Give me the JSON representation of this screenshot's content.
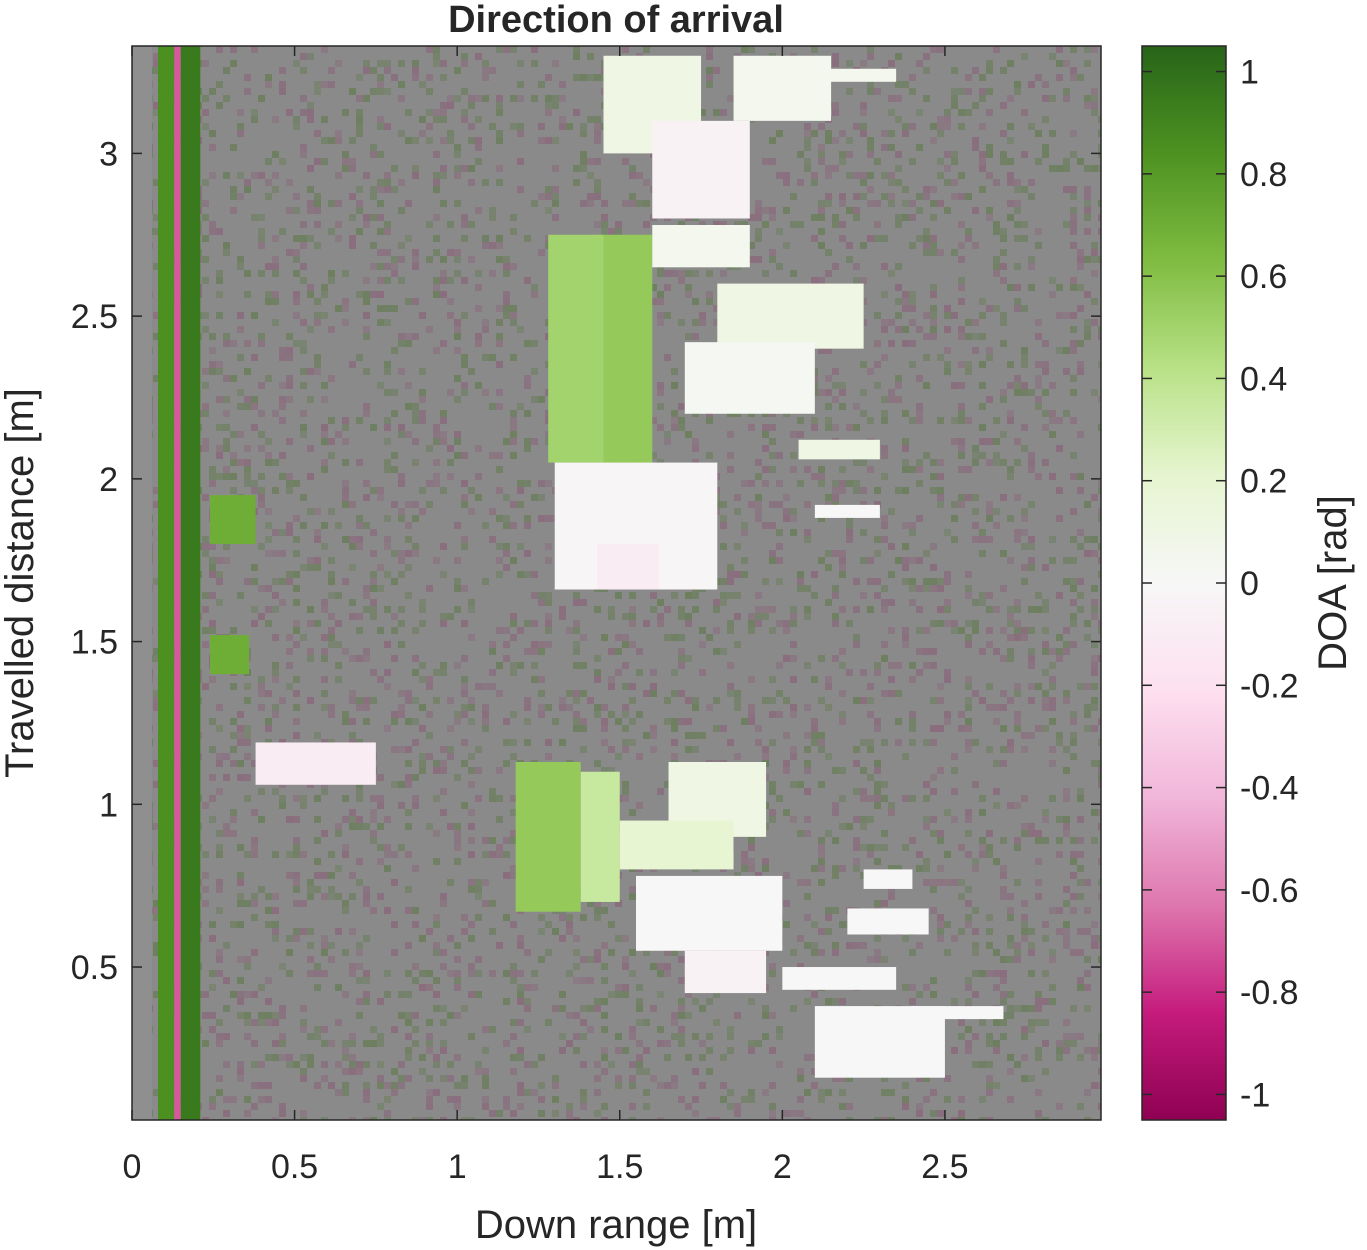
{
  "chart_data": {
    "type": "heatmap",
    "title": "Direction of arrival",
    "xlabel": "Down range [m]",
    "ylabel": "Travelled distance [m]",
    "xlim": [
      0,
      2.98
    ],
    "ylim": [
      0.03,
      3.33
    ],
    "x_ticks": [
      0,
      0.5,
      1,
      1.5,
      2,
      2.5
    ],
    "x_tick_labels": [
      "0",
      "0.5",
      "1",
      "1.5",
      "2",
      "2.5"
    ],
    "y_ticks": [
      0.5,
      1,
      1.5,
      2,
      2.5,
      3
    ],
    "y_tick_labels": [
      "0.5",
      "1",
      "1.5",
      "2",
      "2.5",
      "3"
    ],
    "colorbar": {
      "label": "DOA [rad]",
      "range": [
        -1.05,
        1.05
      ],
      "ticks": [
        -1,
        -0.8,
        -0.6,
        -0.4,
        -0.2,
        0,
        0.2,
        0.4,
        0.6,
        0.8,
        1
      ],
      "tick_labels": [
        "-1",
        "-0.8",
        "-0.6",
        "-0.4",
        "-0.2",
        "0",
        "0.2",
        "0.4",
        "0.6",
        "0.8",
        "1"
      ],
      "colormap": "PiYG",
      "colors": [
        "#8e0152",
        "#c51b7d",
        "#de77ae",
        "#f1b6da",
        "#fde0ef",
        "#f7f7f7",
        "#e6f5d0",
        "#b8e186",
        "#7fbc41",
        "#4d9221",
        "#276419"
      ]
    },
    "background": {
      "description": "low-coherence noise",
      "color": "#8a8a8a"
    },
    "regions": [
      {
        "x": [
          0.08,
          0.13
        ],
        "y": [
          0.03,
          3.33
        ],
        "doa": 0.85
      },
      {
        "x": [
          0.13,
          0.15
        ],
        "y": [
          0.03,
          3.33
        ],
        "doa": -0.7
      },
      {
        "x": [
          0.15,
          0.21
        ],
        "y": [
          0.03,
          3.33
        ],
        "doa": 0.95
      },
      {
        "x": [
          0.24,
          0.38
        ],
        "y": [
          1.8,
          1.95
        ],
        "doa": 0.7
      },
      {
        "x": [
          0.24,
          0.36
        ],
        "y": [
          1.4,
          1.52
        ],
        "doa": 0.7
      },
      {
        "x": [
          0.38,
          0.75
        ],
        "y": [
          1.06,
          1.19
        ],
        "doa": -0.1
      },
      {
        "x": [
          1.42,
          1.6
        ],
        "y": [
          2.05,
          2.75
        ],
        "doa": 0.55
      },
      {
        "x": [
          1.28,
          1.45
        ],
        "y": [
          2.05,
          2.75
        ],
        "doa": 0.5
      },
      {
        "x": [
          1.3,
          1.8
        ],
        "y": [
          1.66,
          2.05
        ],
        "doa": -0.02
      },
      {
        "x": [
          1.43,
          1.62
        ],
        "y": [
          1.66,
          1.8
        ],
        "doa": -0.1
      },
      {
        "x": [
          1.6,
          1.9
        ],
        "y": [
          2.65,
          2.78
        ],
        "doa": 0.05
      },
      {
        "x": [
          1.8,
          2.25
        ],
        "y": [
          2.4,
          2.6
        ],
        "doa": 0.1
      },
      {
        "x": [
          1.7,
          2.1
        ],
        "y": [
          2.2,
          2.42
        ],
        "doa": 0.02
      },
      {
        "x": [
          2.05,
          2.3
        ],
        "y": [
          2.06,
          2.12
        ],
        "doa": 0.1
      },
      {
        "x": [
          2.1,
          2.3
        ],
        "y": [
          1.88,
          1.92
        ],
        "doa": 0.0
      },
      {
        "x": [
          1.45,
          1.75
        ],
        "y": [
          3.0,
          3.3
        ],
        "doa": 0.1
      },
      {
        "x": [
          1.6,
          1.9
        ],
        "y": [
          2.8,
          3.1
        ],
        "doa": -0.05
      },
      {
        "x": [
          1.85,
          2.15
        ],
        "y": [
          3.1,
          3.3
        ],
        "doa": 0.05
      },
      {
        "x": [
          2.1,
          2.35
        ],
        "y": [
          3.22,
          3.26
        ],
        "doa": 0.05
      },
      {
        "x": [
          1.18,
          1.38
        ],
        "y": [
          0.67,
          1.13
        ],
        "doa": 0.55
      },
      {
        "x": [
          1.38,
          1.5
        ],
        "y": [
          0.7,
          1.1
        ],
        "doa": 0.35
      },
      {
        "x": [
          1.65,
          1.95
        ],
        "y": [
          0.9,
          1.13
        ],
        "doa": 0.1
      },
      {
        "x": [
          1.5,
          1.85
        ],
        "y": [
          0.8,
          0.95
        ],
        "doa": 0.2
      },
      {
        "x": [
          1.55,
          2.0
        ],
        "y": [
          0.55,
          0.78
        ],
        "doa": 0.0
      },
      {
        "x": [
          1.7,
          1.95
        ],
        "y": [
          0.42,
          0.55
        ],
        "doa": -0.05
      },
      {
        "x": [
          2.0,
          2.35
        ],
        "y": [
          0.43,
          0.5
        ],
        "doa": 0.0
      },
      {
        "x": [
          2.2,
          2.45
        ],
        "y": [
          0.6,
          0.68
        ],
        "doa": 0.0
      },
      {
        "x": [
          2.25,
          2.4
        ],
        "y": [
          0.74,
          0.8
        ],
        "doa": 0.0
      },
      {
        "x": [
          2.1,
          2.5
        ],
        "y": [
          0.16,
          0.38
        ],
        "doa": 0.0
      },
      {
        "x": [
          2.4,
          2.68
        ],
        "y": [
          0.34,
          0.38
        ],
        "doa": 0.0
      }
    ]
  }
}
